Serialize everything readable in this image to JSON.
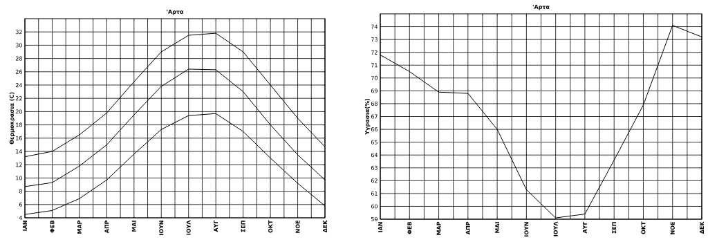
{
  "chart_data": [
    {
      "type": "line",
      "title": "'Αρτα",
      "ylabel": "Θερμοκρασια (C)",
      "categories": [
        "ΙΑΝ",
        "ΦΕΒ",
        "ΜΑΡ",
        "ΑΠΡ",
        "ΜΑΙ",
        "ΙΟΥΝ",
        "ΙΟΥΛ",
        "ΑΥΓ",
        "ΣΕΠ",
        "ΟΚΤ",
        "ΝΟΕ",
        "ΔΕΚ"
      ],
      "series": [
        {
          "color": "#000000",
          "values": [
            13.2,
            14.0,
            16.5,
            19.8,
            24.5,
            29.0,
            31.5,
            31.8,
            29.0,
            24.0,
            19.0,
            14.7
          ]
        },
        {
          "color": "#000000",
          "values": [
            8.7,
            9.3,
            11.8,
            15.0,
            19.5,
            23.8,
            26.4,
            26.3,
            23.0,
            18.0,
            13.5,
            9.7
          ]
        },
        {
          "color": "#000000",
          "values": [
            4.5,
            5.1,
            6.9,
            9.7,
            13.6,
            17.3,
            19.4,
            19.7,
            17.0,
            13.0,
            9.2,
            5.8
          ]
        }
      ],
      "ylim": [
        4,
        34
      ],
      "yticks": [
        4,
        6,
        8,
        10,
        12,
        14,
        16,
        18,
        20,
        22,
        24,
        26,
        28,
        30,
        32
      ],
      "grid": true
    },
    {
      "type": "line",
      "title": "'Αρτα",
      "ylabel": "Υγρασια(%)",
      "categories": [
        "ΙΑΝ",
        "ΦΕΒ",
        "ΜΑΡ",
        "ΑΠΡ",
        "ΜΑΙ",
        "ΙΟΥΝ",
        "ΙΟΥΛ",
        "ΑΥΓ",
        "ΣΕΠ",
        "ΟΚΤ",
        "ΝΟΕ",
        "ΔΕΚ"
      ],
      "series": [
        {
          "color": "#000000",
          "values": [
            71.8,
            70.5,
            68.9,
            68.8,
            66.0,
            61.3,
            59.1,
            59.4,
            63.6,
            67.9,
            74.1,
            73.2
          ]
        }
      ],
      "ylim": [
        59,
        75
      ],
      "yticks": [
        59,
        60,
        61,
        62,
        63,
        64,
        65,
        66,
        67,
        68,
        69,
        70,
        71,
        72,
        73,
        74
      ],
      "grid": true
    }
  ]
}
